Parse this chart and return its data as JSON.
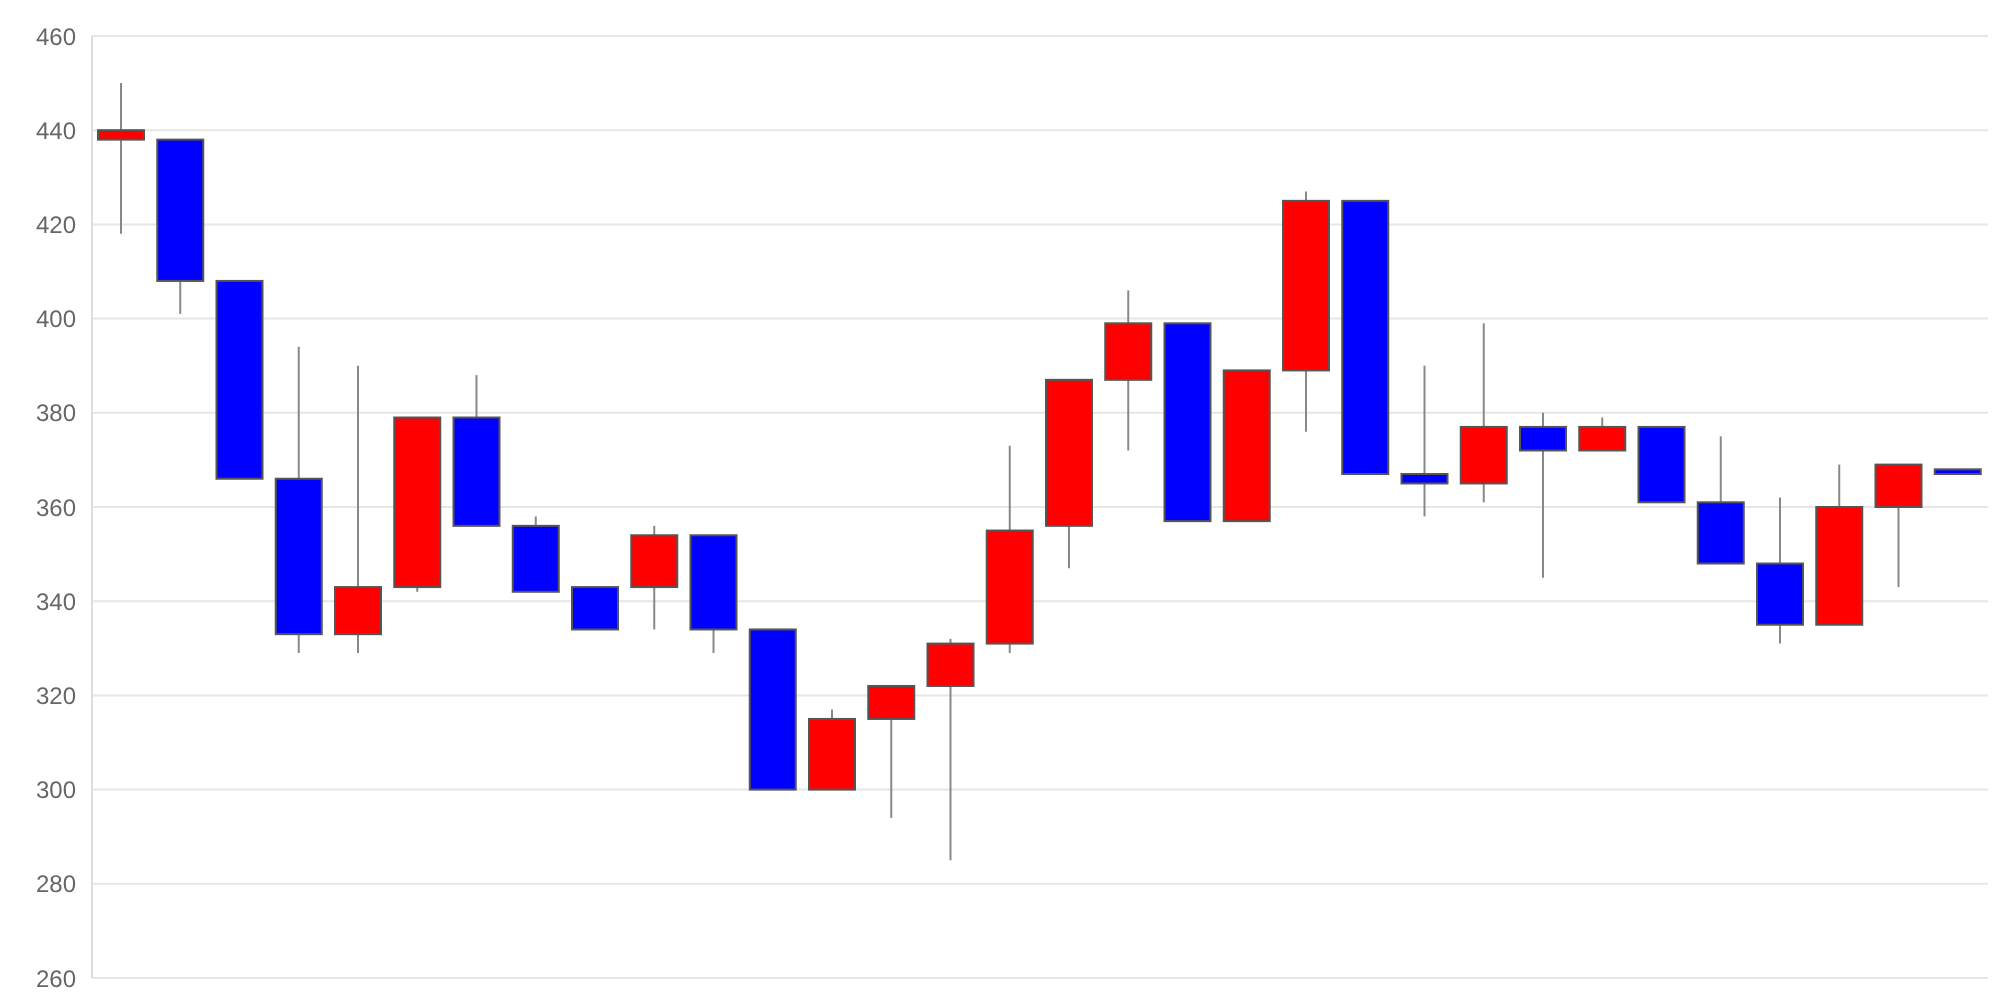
{
  "chart_data": {
    "type": "candlestick",
    "categories": [
      null,
      null,
      null,
      null,
      null,
      null,
      null,
      null,
      null,
      null,
      null,
      null,
      null,
      null,
      null,
      null,
      null,
      null,
      null,
      null,
      null,
      null,
      null,
      null,
      null,
      null,
      null,
      null,
      null,
      null,
      null,
      null
    ],
    "ohlc": [
      [
        438,
        450,
        418,
        440
      ],
      [
        438,
        438,
        401,
        408
      ],
      [
        408,
        408,
        366,
        366
      ],
      [
        366,
        394,
        329,
        333
      ],
      [
        333,
        390,
        329,
        343
      ],
      [
        343,
        379,
        342,
        379
      ],
      [
        379,
        388,
        356,
        356
      ],
      [
        356,
        358,
        342,
        342
      ],
      [
        343,
        343,
        334,
        334
      ],
      [
        343,
        356,
        334,
        354
      ],
      [
        354,
        354,
        329,
        334
      ],
      [
        334,
        334,
        300,
        300
      ],
      [
        300,
        317,
        300,
        315
      ],
      [
        315,
        322,
        294,
        322
      ],
      [
        322,
        332,
        285,
        331
      ],
      [
        331,
        373,
        329,
        355
      ],
      [
        356,
        387,
        347,
        387
      ],
      [
        387,
        406,
        372,
        399
      ],
      [
        399,
        399,
        357,
        357
      ],
      [
        357,
        389,
        357,
        389
      ],
      [
        389,
        427,
        376,
        425
      ],
      [
        425,
        425,
        367,
        367
      ],
      [
        367,
        390,
        358,
        365
      ],
      [
        365,
        399,
        361,
        377
      ],
      [
        377,
        380,
        345,
        372
      ],
      [
        372,
        379,
        372,
        377
      ],
      [
        377,
        377,
        361,
        361
      ],
      [
        361,
        375,
        348,
        348
      ],
      [
        348,
        362,
        331,
        335
      ],
      [
        335,
        369,
        335,
        360
      ],
      [
        360,
        369,
        343,
        369
      ],
      [
        368,
        368,
        367,
        367
      ]
    ],
    "colors": [
      "#ff0000",
      "#0000ff",
      "#0000ff",
      "#0000ff",
      "#ff0000",
      "#ff0000",
      "#0000ff",
      "#0000ff",
      "#0000ff",
      "#ff0000",
      "#0000ff",
      "#0000ff",
      "#ff0000",
      "#ff0000",
      "#ff0000",
      "#ff0000",
      "#ff0000",
      "#ff0000",
      "#0000ff",
      "#ff0000",
      "#ff0000",
      "#0000ff",
      "#0000ff",
      "#ff0000",
      "#0000ff",
      "#ff0000",
      "#0000ff",
      "#0000ff",
      "#0000ff",
      "#ff0000",
      "#ff0000",
      "#0000ff"
    ],
    "ylim": [
      260,
      460
    ],
    "yticks": [
      260,
      280,
      300,
      320,
      340,
      360,
      380,
      400,
      420,
      440,
      460
    ],
    "grid": "y",
    "tick_labels": "y"
  }
}
